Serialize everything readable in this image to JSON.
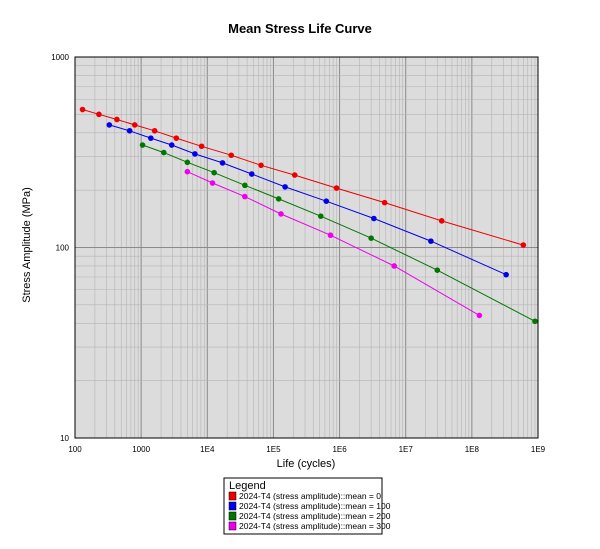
{
  "chart_data": {
    "type": "line",
    "title": "Mean Stress Life Curve",
    "xlabel": "Life (cycles)",
    "ylabel": "Stress Amplitude (MPa)",
    "xscale": "log",
    "yscale": "log",
    "xlim": [
      100,
      1000000000
    ],
    "ylim": [
      10,
      1000
    ],
    "x_tick_labels": [
      "100",
      "1000",
      "1E4",
      "1E5",
      "1E6",
      "1E7",
      "1E8",
      "1E9"
    ],
    "y_tick_labels": [
      "10",
      "100",
      "1000"
    ],
    "grid": true,
    "legend": {
      "title": "Legend",
      "placement": "bottom-center"
    },
    "series": [
      {
        "name": "2024-T4 (stress amplitude)::mean = 0",
        "color": "#ee0000",
        "x": [
          130,
          230,
          430,
          800,
          1600,
          3400,
          8200,
          23000,
          65000,
          210000,
          900000,
          4800000,
          35000000,
          600000000
        ],
        "y": [
          530,
          500,
          470,
          440,
          410,
          375,
          340,
          305,
          270,
          240,
          205,
          172,
          138,
          103
        ]
      },
      {
        "name": "2024-T4 (stress amplitude)::mean = 100",
        "color": "#0000ee",
        "x": [
          330,
          670,
          1400,
          2900,
          6500,
          17000,
          47000,
          150000,
          630000,
          3300000,
          24000000,
          330000000
        ],
        "y": [
          440,
          410,
          375,
          345,
          310,
          278,
          243,
          208,
          175,
          142,
          108,
          72
        ]
      },
      {
        "name": "2024-T4 (stress amplitude)::mean = 200",
        "color": "#007700",
        "x": [
          1050,
          2200,
          5000,
          12700,
          37000,
          120000,
          520000,
          3000000,
          30000000,
          900000000
        ],
        "y": [
          345,
          315,
          280,
          247,
          212,
          180,
          146,
          112,
          76,
          41
        ]
      },
      {
        "name": "2024-T4 (stress amplitude)::mean = 300",
        "color": "#ee00ee",
        "x": [
          5000,
          12000,
          37000,
          130000,
          730000,
          6700000,
          130000000
        ],
        "y": [
          250,
          218,
          185,
          150,
          116,
          80,
          44
        ]
      }
    ]
  }
}
